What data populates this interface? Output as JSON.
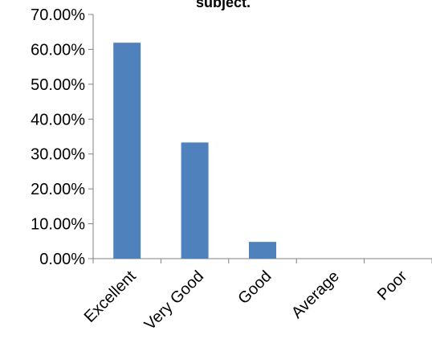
{
  "chart_data": {
    "type": "bar",
    "title": "subject.",
    "categories": [
      "Excellent",
      "Very Good",
      "Good",
      "Average",
      "Poor"
    ],
    "values": [
      61.9,
      33.3,
      4.8,
      0,
      0
    ],
    "ylim": [
      0,
      70
    ],
    "yticks": [
      "0.00%",
      "10.00%",
      "20.00%",
      "30.00%",
      "40.00%",
      "50.00%",
      "60.00%",
      "70.00%"
    ],
    "bar_color": "#4f81bd",
    "grid": false,
    "legend": "none"
  }
}
